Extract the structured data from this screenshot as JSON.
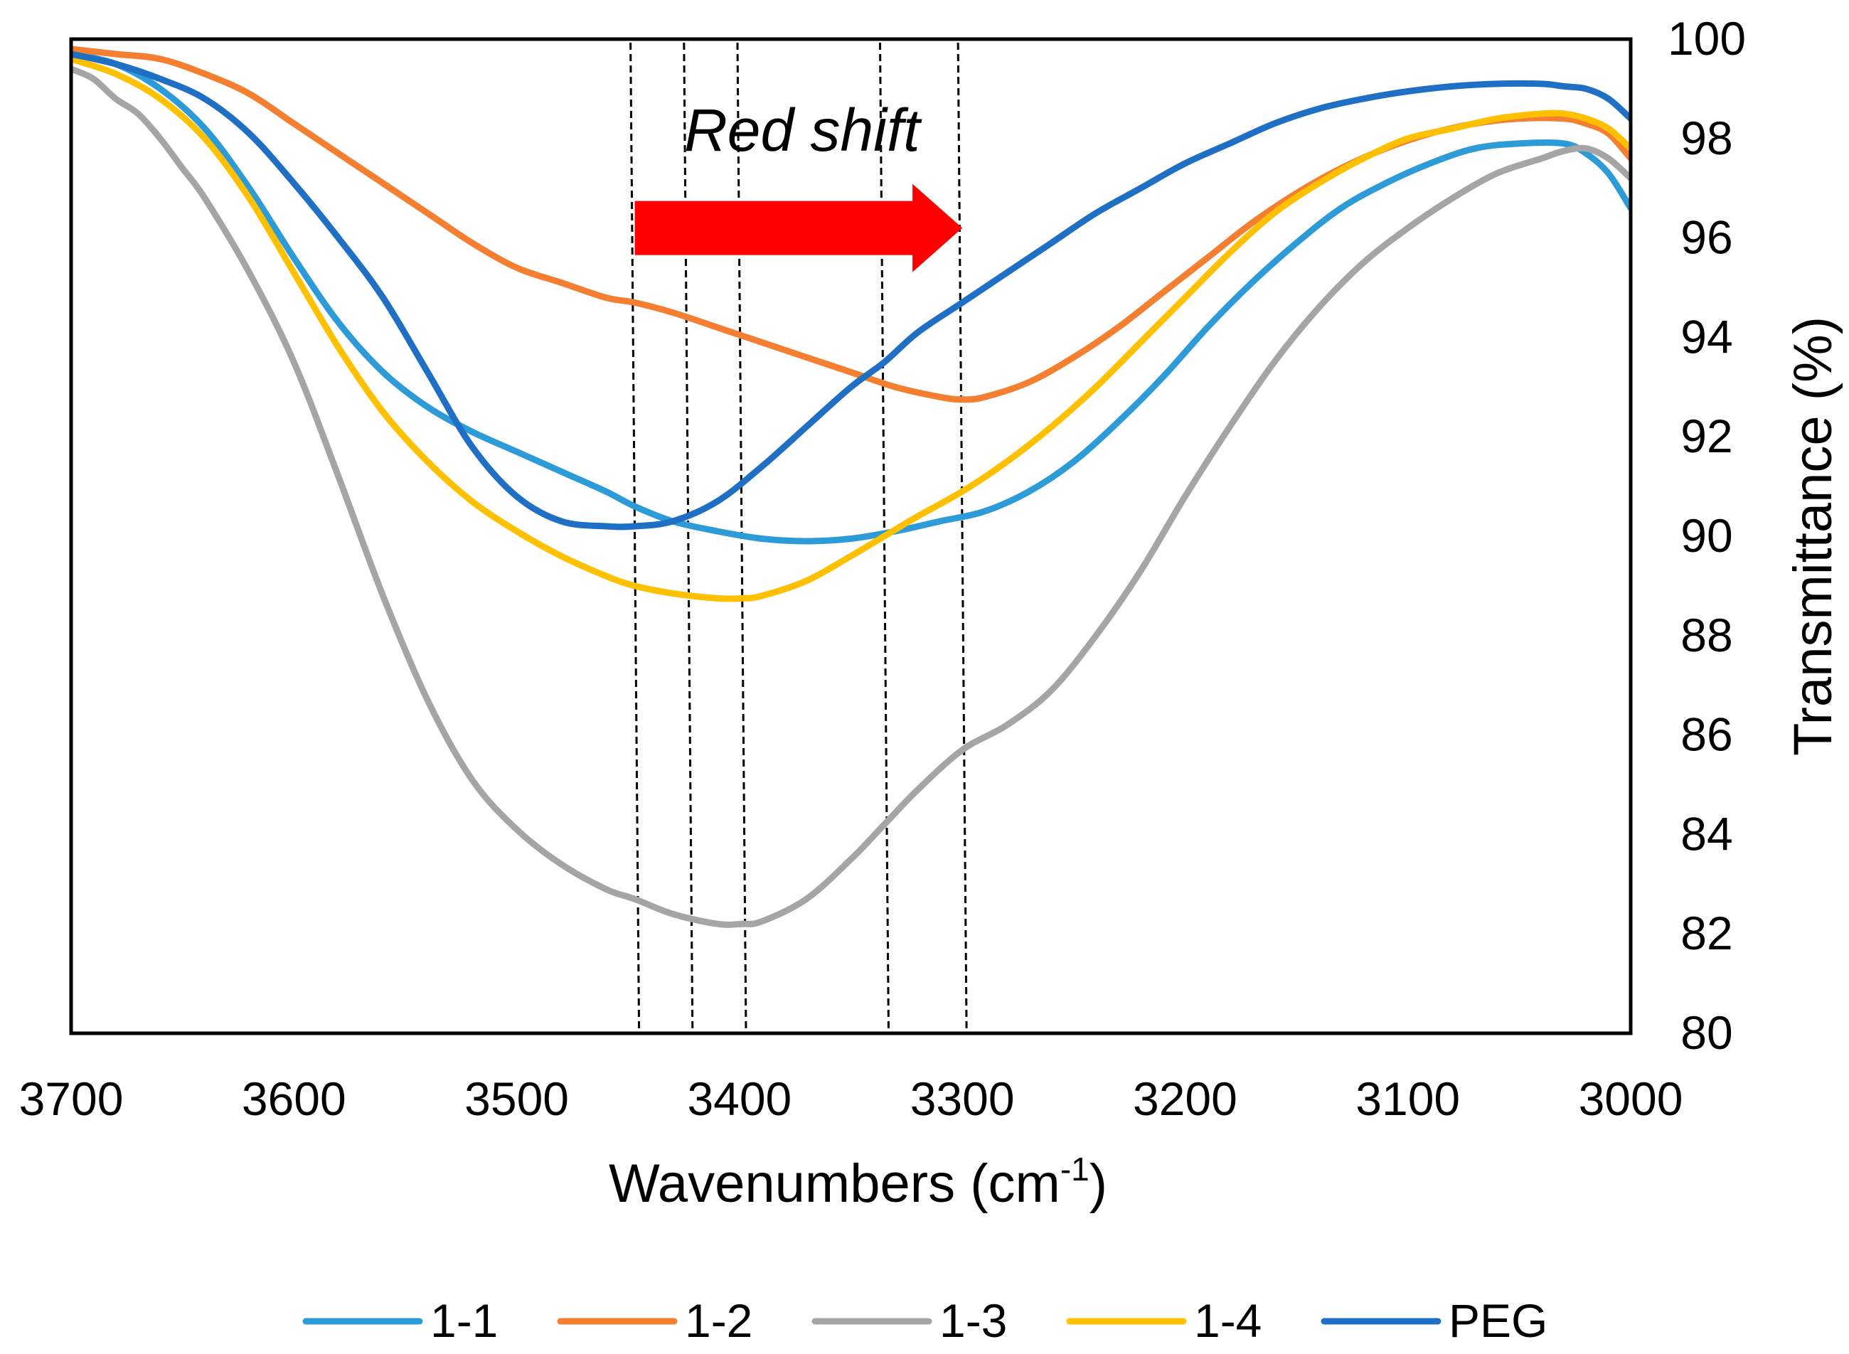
{
  "chart_data": {
    "type": "line",
    "title": "",
    "xlabel": "Wavenumbers (cm",
    "xlabel_sup": "-1",
    "xlabel_close": ")",
    "ylabel": "Transmittance (%)",
    "xlim": [
      3700,
      3000
    ],
    "ylim": [
      80,
      100
    ],
    "x_ticks": [
      "3700",
      "3600",
      "3500",
      "3400",
      "3300",
      "3200",
      "3100",
      "3000"
    ],
    "y_ticks": [
      "80",
      "82",
      "84",
      "86",
      "88",
      "90",
      "92",
      "94",
      "96",
      "98",
      "100"
    ],
    "legend_position": "bottom",
    "annotation": {
      "text": "Red shift",
      "color": "#ff0000",
      "arrow_from_x": 3447,
      "arrow_to_x": 3300,
      "arrow_y": 96.2
    },
    "reference_lines_x": [
      3447,
      3423,
      3399,
      3335,
      3300
    ],
    "series": [
      {
        "name": "1-1",
        "color": "#2e9bd9",
        "x": [
          3700,
          3680,
          3660,
          3640,
          3620,
          3600,
          3580,
          3560,
          3540,
          3520,
          3500,
          3480,
          3460,
          3447,
          3430,
          3410,
          3390,
          3370,
          3350,
          3330,
          3310,
          3290,
          3270,
          3250,
          3230,
          3210,
          3190,
          3170,
          3150,
          3130,
          3110,
          3090,
          3070,
          3050,
          3030,
          3020,
          3010,
          3000
        ],
        "y": [
          99.7,
          99.5,
          99.0,
          98.2,
          97.0,
          95.6,
          94.3,
          93.3,
          92.6,
          92.1,
          91.7,
          91.3,
          90.9,
          90.6,
          90.3,
          90.1,
          89.95,
          89.9,
          89.95,
          90.1,
          90.3,
          90.5,
          90.9,
          91.5,
          92.3,
          93.2,
          94.2,
          95.1,
          95.9,
          96.6,
          97.1,
          97.5,
          97.8,
          97.9,
          97.9,
          97.7,
          97.3,
          96.6
        ]
      },
      {
        "name": "1-2",
        "color": "#f47f31",
        "x": [
          3700,
          3680,
          3660,
          3640,
          3620,
          3600,
          3580,
          3560,
          3540,
          3520,
          3500,
          3480,
          3460,
          3447,
          3430,
          3410,
          3390,
          3370,
          3350,
          3330,
          3310,
          3300,
          3290,
          3270,
          3250,
          3230,
          3210,
          3190,
          3170,
          3150,
          3130,
          3110,
          3090,
          3070,
          3050,
          3030,
          3020,
          3010,
          3000
        ],
        "y": [
          99.8,
          99.7,
          99.6,
          99.3,
          98.9,
          98.3,
          97.7,
          97.1,
          96.5,
          95.9,
          95.4,
          95.1,
          94.8,
          94.7,
          94.5,
          94.2,
          93.9,
          93.6,
          93.3,
          93.0,
          92.8,
          92.75,
          92.8,
          93.1,
          93.6,
          94.2,
          94.9,
          95.6,
          96.3,
          96.9,
          97.4,
          97.8,
          98.1,
          98.3,
          98.4,
          98.4,
          98.3,
          98.1,
          97.6
        ]
      },
      {
        "name": "1-3",
        "color": "#a5a5a5",
        "x": [
          3700,
          3690,
          3680,
          3670,
          3660,
          3650,
          3640,
          3620,
          3600,
          3580,
          3560,
          3540,
          3520,
          3500,
          3480,
          3460,
          3447,
          3430,
          3410,
          3399,
          3390,
          3370,
          3350,
          3335,
          3320,
          3300,
          3280,
          3260,
          3240,
          3220,
          3200,
          3180,
          3160,
          3140,
          3120,
          3100,
          3080,
          3060,
          3040,
          3030,
          3020,
          3010,
          3000
        ],
        "y": [
          99.4,
          99.2,
          98.8,
          98.5,
          98.0,
          97.4,
          96.8,
          95.3,
          93.5,
          91.2,
          88.8,
          86.7,
          85.1,
          84.1,
          83.4,
          82.9,
          82.7,
          82.4,
          82.2,
          82.2,
          82.25,
          82.7,
          83.5,
          84.2,
          84.9,
          85.7,
          86.2,
          86.9,
          88.0,
          89.3,
          90.8,
          92.2,
          93.5,
          94.6,
          95.5,
          96.2,
          96.8,
          97.3,
          97.6,
          97.75,
          97.8,
          97.6,
          97.2
        ]
      },
      {
        "name": "1-4",
        "color": "#ffc000",
        "x": [
          3700,
          3680,
          3660,
          3640,
          3620,
          3600,
          3580,
          3560,
          3540,
          3520,
          3500,
          3480,
          3460,
          3447,
          3430,
          3410,
          3399,
          3390,
          3370,
          3350,
          3335,
          3320,
          3300,
          3280,
          3260,
          3240,
          3220,
          3200,
          3180,
          3160,
          3140,
          3120,
          3100,
          3080,
          3060,
          3040,
          3030,
          3020,
          3010,
          3000
        ],
        "y": [
          99.6,
          99.3,
          98.8,
          98.0,
          96.8,
          95.3,
          93.8,
          92.5,
          91.5,
          90.7,
          90.1,
          89.6,
          89.2,
          89.0,
          88.85,
          88.75,
          88.75,
          88.8,
          89.1,
          89.6,
          90.0,
          90.4,
          90.9,
          91.5,
          92.2,
          93.0,
          93.9,
          94.8,
          95.7,
          96.5,
          97.1,
          97.6,
          98.0,
          98.2,
          98.4,
          98.5,
          98.5,
          98.4,
          98.2,
          97.8
        ]
      },
      {
        "name": "PEG",
        "color": "#1f6fc5",
        "x": [
          3700,
          3680,
          3660,
          3640,
          3620,
          3600,
          3580,
          3560,
          3540,
          3520,
          3500,
          3480,
          3460,
          3447,
          3430,
          3410,
          3390,
          3370,
          3350,
          3335,
          3320,
          3300,
          3280,
          3260,
          3240,
          3220,
          3200,
          3180,
          3160,
          3140,
          3120,
          3100,
          3080,
          3060,
          3040,
          3030,
          3020,
          3010,
          3000
        ],
        "y": [
          99.7,
          99.5,
          99.2,
          98.8,
          98.1,
          97.1,
          96.0,
          94.8,
          93.3,
          91.8,
          90.8,
          90.3,
          90.2,
          90.2,
          90.3,
          90.7,
          91.4,
          92.2,
          93.0,
          93.5,
          94.1,
          94.7,
          95.3,
          95.9,
          96.5,
          97.0,
          97.5,
          97.9,
          98.3,
          98.6,
          98.8,
          98.95,
          99.05,
          99.1,
          99.1,
          99.05,
          99.0,
          98.8,
          98.4
        ]
      }
    ]
  }
}
